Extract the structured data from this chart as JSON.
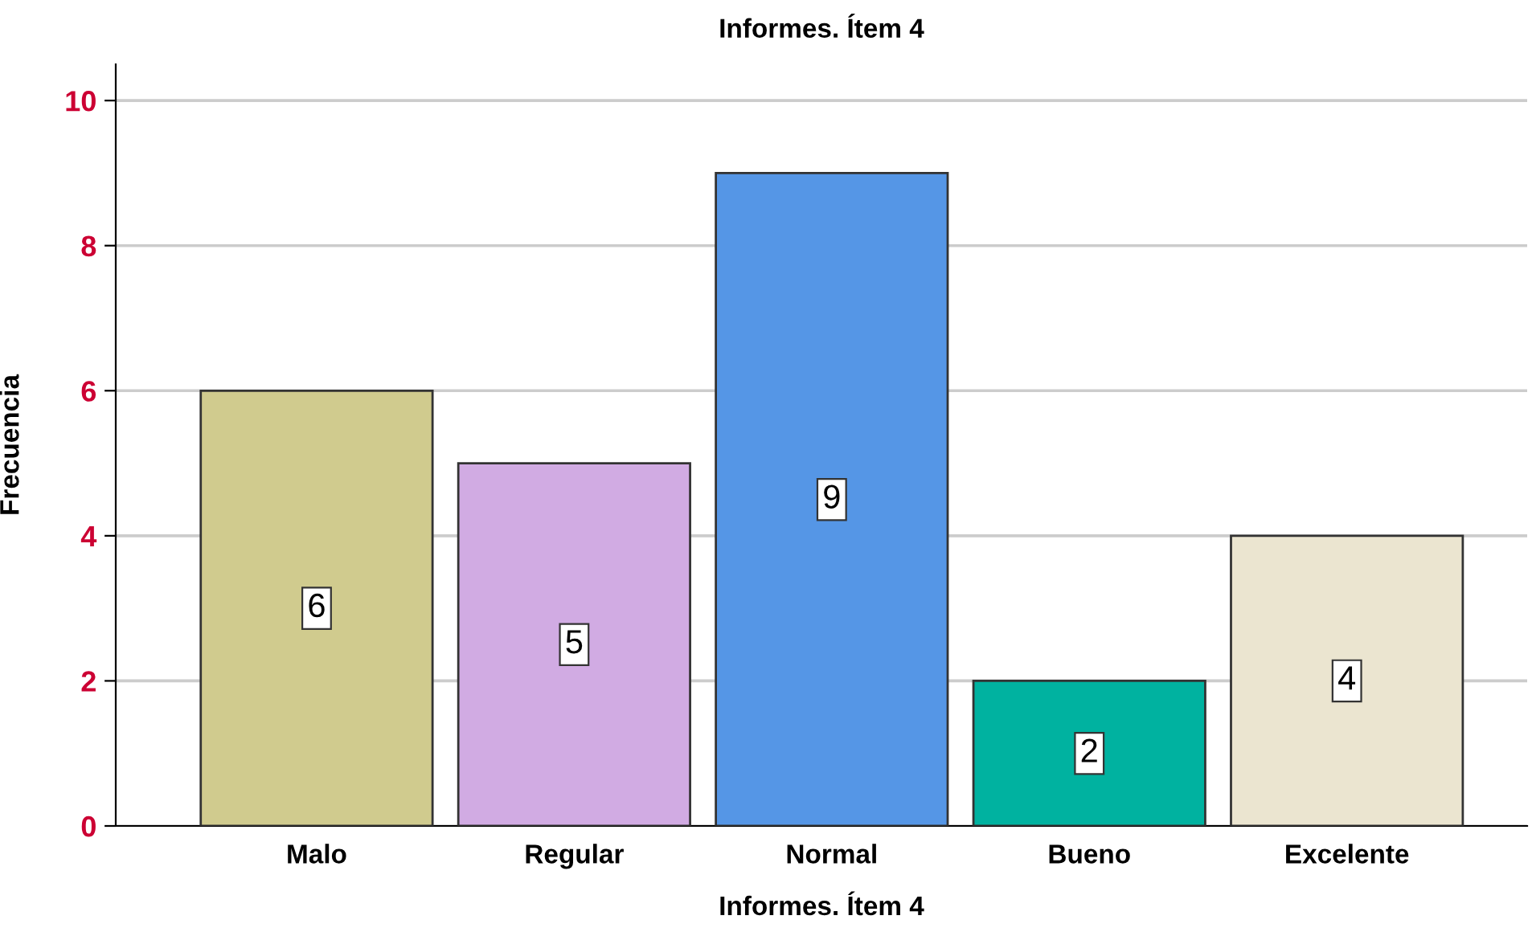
{
  "chart_data": {
    "type": "bar",
    "title": "Informes. Ítem 4",
    "xlabel": "Informes. Ítem 4",
    "ylabel": "Frecuencia",
    "categories": [
      "Malo",
      "Regular",
      "Normal",
      "Bueno",
      "Excelente"
    ],
    "values": [
      6,
      5,
      9,
      2,
      4
    ],
    "colors": [
      "#d0cb8e",
      "#d1abe3",
      "#5596e6",
      "#00b2a0",
      "#ebe5d0"
    ],
    "ylim": [
      0,
      10.5
    ],
    "yticks": [
      0,
      2,
      4,
      6,
      8,
      10
    ],
    "grid": "y",
    "data_labels": true
  }
}
